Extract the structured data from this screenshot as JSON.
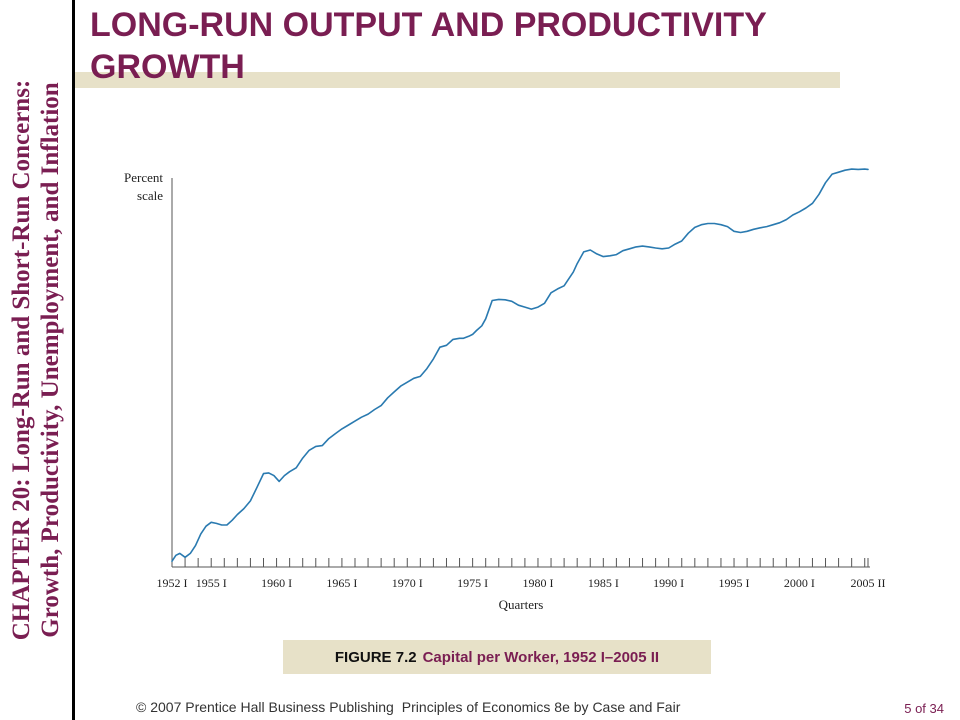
{
  "slide": {
    "title": "LONG-RUN OUTPUT AND PRODUCTIVITY GROWTH",
    "side_title_line1": "CHAPTER 20:  Long-Run and Short-Run Concerns:",
    "side_title_line2": "Growth, Productivity, Unemployment, and Inflation",
    "copyright": "© 2007 Prentice Hall Business Publishing",
    "book": "Principles of Economics 8e by Case and Fair",
    "page": "5 of 34"
  },
  "caption": {
    "figure_label": "FIGURE 7.2",
    "text": "Capital per Worker, 1952 I–2005 II"
  },
  "colors": {
    "accent": "#7a1e52",
    "band": "#e7e1c8",
    "line": "#2a7ab0"
  },
  "chart_data": {
    "type": "line",
    "title": "",
    "ylabel_line1": "Percent",
    "ylabel_line2": "scale",
    "xlabel": "Quarters",
    "x_range": [
      1952,
      2005.25
    ],
    "y_range": [
      0,
      100
    ],
    "y_ticks_shown": false,
    "grid": false,
    "tick_labels": [
      {
        "label": "1952 I",
        "x": 1952
      },
      {
        "label": "1955 I",
        "x": 1955
      },
      {
        "label": "1960 I",
        "x": 1960
      },
      {
        "label": "1965 I",
        "x": 1965
      },
      {
        "label": "1970 I",
        "x": 1970
      },
      {
        "label": "1975 I",
        "x": 1975
      },
      {
        "label": "1980 I",
        "x": 1980
      },
      {
        "label": "1985 I",
        "x": 1985
      },
      {
        "label": "1990 I",
        "x": 1990
      },
      {
        "label": "1995 I",
        "x": 1995
      },
      {
        "label": "2000 I",
        "x": 2000
      },
      {
        "label": "2005 II",
        "x": 2005.25
      }
    ],
    "series": [
      {
        "name": "",
        "x": [
          1952,
          1952.3,
          1952.6,
          1953,
          1953.4,
          1953.8,
          1954.2,
          1954.6,
          1955,
          1955.4,
          1955.8,
          1956.2,
          1956.6,
          1957,
          1957.5,
          1958,
          1958.5,
          1959,
          1959.4,
          1959.8,
          1960.2,
          1960.6,
          1961,
          1961.5,
          1962,
          1962.5,
          1963,
          1963.5,
          1964,
          1964.5,
          1965,
          1965.5,
          1966,
          1966.5,
          1967,
          1967.5,
          1968,
          1968.5,
          1969,
          1969.5,
          1970,
          1970.5,
          1971,
          1971.5,
          1972,
          1972.5,
          1973,
          1973.5,
          1974,
          1974.3,
          1974.7,
          1975,
          1975.3,
          1975.7,
          1976,
          1976.5,
          1977,
          1977.5,
          1978,
          1978.5,
          1979,
          1979.5,
          1980,
          1980.5,
          1981,
          1981.5,
          1982,
          1982.3,
          1982.7,
          1983,
          1983.5,
          1984,
          1984.5,
          1985,
          1985.5,
          1986,
          1986.5,
          1987,
          1987.5,
          1988,
          1988.5,
          1989,
          1989.5,
          1990,
          1990.5,
          1991,
          1991.5,
          1992,
          1992.5,
          1993,
          1993.5,
          1994,
          1994.5,
          1995,
          1995.5,
          1996,
          1996.5,
          1997,
          1997.5,
          1998,
          1998.5,
          1999,
          1999.5,
          2000,
          2000.5,
          2001,
          2001.5,
          2002,
          2002.5,
          2003,
          2003.5,
          2004,
          2004.5,
          2005,
          2005.25
        ],
        "values": [
          1.5,
          3,
          3.5,
          2.5,
          3.5,
          5.5,
          8.5,
          10.5,
          11.5,
          11.2,
          10.8,
          10.8,
          12,
          13.5,
          15,
          17,
          20.5,
          24,
          24.2,
          23.5,
          22,
          23.5,
          24.5,
          25.5,
          28,
          30,
          31,
          31.2,
          33,
          34.3,
          35.5,
          36.5,
          37.5,
          38.5,
          39.3,
          40.5,
          41.5,
          43.5,
          45,
          46.5,
          47.5,
          48.5,
          49,
          51,
          53.5,
          56.5,
          57,
          58.5,
          58.8,
          58.8,
          59.3,
          59.8,
          60.8,
          62,
          63.8,
          68.5,
          68.8,
          68.7,
          68.3,
          67.3,
          66.8,
          66.3,
          66.8,
          67.8,
          70.5,
          71.5,
          72.3,
          73.8,
          75.8,
          78,
          81,
          81.5,
          80.5,
          79.8,
          80,
          80.3,
          81.3,
          81.8,
          82.3,
          82.5,
          82.3,
          82,
          81.8,
          82,
          83,
          83.8,
          85.8,
          87.3,
          88,
          88.3,
          88.3,
          88,
          87.5,
          86.3,
          86,
          86.3,
          86.8,
          87.2,
          87.5,
          88,
          88.5,
          89.3,
          90.5,
          91.3,
          92.3,
          93.5,
          95.8,
          98.8,
          101,
          101.5,
          102,
          102.3,
          102.2,
          102.3,
          102.2
        ]
      }
    ]
  }
}
